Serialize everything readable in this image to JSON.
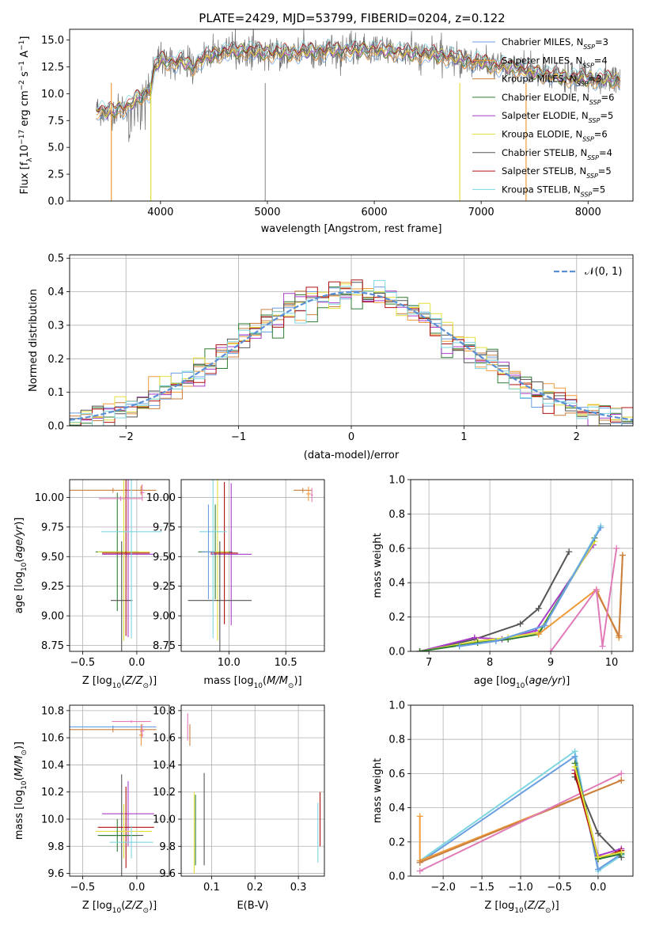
{
  "figure_title": "PLATE=2429, MJD=53799, FIBERID=0204, z=0.122",
  "colors": {
    "Chabrier MILES": "#6a9ee0",
    "Salpeter MILES": "#f09b3a",
    "Kroupa MILES": "#c98040",
    "Chabrier ELODIE": "#2e7d32",
    "Salpeter ELODIE": "#a93cc9",
    "Kroupa ELODIE": "#e3e03a",
    "Chabrier STELIB": "#555555",
    "Salpeter STELIB": "#b01010",
    "Kroupa STELIB": "#7fd6e0",
    "Normal": "#5b8fd6",
    "extra_pink": "#e07bb8"
  },
  "chart_data": [
    {
      "id": "spectrum",
      "type": "line",
      "title": "PLATE=2429, MJD=53799, FIBERID=0204, z=0.122",
      "xlabel": "wavelength [Angstrom, rest frame]",
      "ylabel": "Flux [f_λ10^-17 erg cm^-2 s^-1 A^-1]",
      "xlim": [
        3150,
        8420
      ],
      "ylim": [
        0,
        16
      ],
      "xticks": [
        4000,
        5000,
        6000,
        7000,
        8000
      ],
      "yticks": [
        0.0,
        2.5,
        5.0,
        7.5,
        10.0,
        12.5,
        15.0
      ],
      "grid": false,
      "legend_position": "top-right",
      "series": [
        {
          "name": "Chabrier MILES, N_SSP=3"
        },
        {
          "name": "Salpeter MILES, N_SSP=4"
        },
        {
          "name": "Kroupa MILES, N_SSP=3"
        },
        {
          "name": "Chabrier ELODIE, N_SSP=6"
        },
        {
          "name": "Salpeter ELODIE, N_SSP=5"
        },
        {
          "name": "Kroupa ELODIE, N_SSP=6"
        },
        {
          "name": "Chabrier STELIB, N_SSP=4"
        },
        {
          "name": "Salpeter STELIB, N_SSP=5"
        },
        {
          "name": "Kroupa STELIB, N_SSP=5"
        }
      ],
      "continuum_points": {
        "wavelength": [
          3400,
          3500,
          3600,
          3700,
          3800,
          3900,
          3950,
          4000,
          4100,
          4200,
          4300,
          4400,
          4500,
          4600,
          4800,
          5000,
          5200,
          5400,
          5600,
          5800,
          6000,
          6200,
          6400,
          6600,
          6800,
          7000,
          7200,
          7400,
          7600,
          7800,
          8000,
          8200
        ],
        "flux": [
          8.6,
          8.2,
          8.6,
          8.8,
          9.7,
          10.2,
          12.4,
          13.2,
          12.9,
          13.0,
          12.5,
          13.3,
          13.6,
          13.9,
          14.0,
          13.8,
          13.8,
          13.9,
          14.0,
          14.0,
          14.1,
          13.9,
          13.7,
          13.6,
          13.2,
          12.9,
          12.5,
          12.2,
          11.8,
          11.5,
          11.4,
          11.3
        ]
      }
    },
    {
      "id": "residuals",
      "type": "bar",
      "xlabel": "(data-model)/error",
      "ylabel": "Normed distribution",
      "xlim": [
        -2.5,
        2.5
      ],
      "ylim": [
        0,
        0.51
      ],
      "xticks": [
        -2,
        -1,
        0,
        1,
        2
      ],
      "yticks": [
        0.0,
        0.1,
        0.2,
        0.3,
        0.4,
        0.5
      ],
      "grid": true,
      "legend_position": "top-right",
      "series": [
        {
          "name": "𝒩(0, 1)"
        }
      ],
      "bin_width": 0.1
    },
    {
      "id": "age_vs_Z",
      "type": "scatter",
      "xlabel": "Z [log10(Z/Z⊙)]",
      "ylabel": "age  [log10(age/yr)]",
      "xlim": [
        -0.62,
        0.3
      ],
      "ylim": [
        8.7,
        10.15
      ],
      "xticks": [
        -0.5,
        0.0
      ],
      "yticks": [
        8.75,
        9.0,
        9.25,
        9.5,
        9.75,
        10.0
      ],
      "grid": true,
      "points": [
        {
          "series": "Chabrier MILES",
          "x": 0.04,
          "y": 10.06,
          "xerr": 0.02,
          "yerr": 0.03
        },
        {
          "series": "Salpeter MILES",
          "x": 0.04,
          "y": 10.06,
          "xerr": 0.02,
          "yerr": 0.04
        },
        {
          "series": "Kroupa MILES",
          "x": -0.22,
          "y": 10.06,
          "xerr": 0.4,
          "yerr": 0.02
        },
        {
          "series": "Chabrier ELODIE",
          "x": -0.18,
          "y": 9.54,
          "xerr": 0.2,
          "yerr": 0.5
        },
        {
          "series": "Salpeter ELODIE",
          "x": -0.08,
          "y": 9.52,
          "xerr": 0.24,
          "yerr": 0.7
        },
        {
          "series": "Kroupa ELODIE",
          "x": -0.12,
          "y": 9.54,
          "xerr": 0.24,
          "yerr": 0.75
        },
        {
          "series": "Chabrier STELIB",
          "x": -0.14,
          "y": 9.13,
          "xerr": 0.1,
          "yerr": 0.5
        },
        {
          "series": "Salpeter STELIB",
          "x": -0.1,
          "y": 9.53,
          "xerr": 0.22,
          "yerr": 0.7
        },
        {
          "series": "Kroupa STELIB",
          "x": -0.05,
          "y": 9.71,
          "xerr": 0.28,
          "yerr": 0.9
        },
        {
          "series": "extra_pink",
          "x": -0.15,
          "y": 9.99,
          "xerr": 0.2,
          "yerr": 0.02
        },
        {
          "series": "extra_pink",
          "x": 0.05,
          "y": 10.04,
          "xerr": 0.02,
          "yerr": 0.07
        }
      ]
    },
    {
      "id": "age_vs_mass",
      "type": "scatter",
      "xlabel": "mass [log10(M/M⊙)]",
      "ylabel": "",
      "xlim": [
        9.58,
        10.84
      ],
      "ylim": [
        8.7,
        10.15
      ],
      "xticks": [
        10.0,
        10.5
      ],
      "yticks": [
        8.75,
        9.0,
        9.25,
        9.5,
        9.75,
        10.0
      ],
      "grid": true,
      "points": [
        {
          "series": "Kroupa MILES",
          "x": 10.65,
          "y": 10.06,
          "xerr": 0.08,
          "yerr": 0.02
        },
        {
          "series": "Salpeter MILES",
          "x": 10.7,
          "y": 10.03,
          "xerr": 0.02,
          "yerr": 0.06
        },
        {
          "series": "extra_pink",
          "x": 10.73,
          "y": 10.02,
          "xerr": 0.01,
          "yerr": 0.06
        },
        {
          "series": "Chabrier ELODIE",
          "x": 9.88,
          "y": 9.54,
          "xerr": 0.15,
          "yerr": 0.4
        },
        {
          "series": "Salpeter ELODIE",
          "x": 10.02,
          "y": 9.52,
          "xerr": 0.18,
          "yerr": 0.6
        },
        {
          "series": "Kroupa ELODIE",
          "x": 9.9,
          "y": 9.54,
          "xerr": 0.1,
          "yerr": 0.75
        },
        {
          "series": "Chabrier STELIB",
          "x": 9.92,
          "y": 9.13,
          "xerr": 0.28,
          "yerr": 0.5
        },
        {
          "series": "Salpeter STELIB",
          "x": 9.96,
          "y": 9.53,
          "xerr": 0.12,
          "yerr": 0.6
        },
        {
          "series": "Kroupa STELIB",
          "x": 9.86,
          "y": 9.71,
          "xerr": 0.12,
          "yerr": 0.9
        },
        {
          "series": "Chabrier MILES",
          "x": 9.82,
          "y": 9.54,
          "xerr": 0.06,
          "yerr": 0.4
        }
      ]
    },
    {
      "id": "weight_vs_age",
      "type": "line",
      "xlabel": "age  [log10(age/yr)]",
      "ylabel": "mass weight",
      "xlim": [
        6.7,
        10.35
      ],
      "ylim": [
        0,
        1.0
      ],
      "xticks": [
        7,
        8,
        9,
        10
      ],
      "yticks": [
        0.0,
        0.2,
        0.4,
        0.6,
        0.8,
        1.0
      ],
      "grid": true,
      "series": [
        {
          "color_key": "Chabrier STELIB",
          "x": [
            6.85,
            7.75,
            8.5,
            8.8,
            9.3
          ],
          "y": [
            0.0,
            0.07,
            0.16,
            0.25,
            0.58
          ]
        },
        {
          "color_key": "Salpeter ELODIE",
          "x": [
            6.85,
            7.75,
            8.2,
            8.75,
            9.7
          ],
          "y": [
            0.0,
            0.08,
            0.07,
            0.12,
            0.62
          ]
        },
        {
          "color_key": "Kroupa ELODIE",
          "x": [
            6.85,
            7.8,
            8.3,
            8.8,
            9.72
          ],
          "y": [
            0.0,
            0.06,
            0.08,
            0.11,
            0.64
          ]
        },
        {
          "color_key": "Chabrier ELODIE",
          "x": [
            6.85,
            7.8,
            8.3,
            8.8,
            9.72
          ],
          "y": [
            0.0,
            0.05,
            0.07,
            0.1,
            0.66
          ]
        },
        {
          "color_key": "Kroupa STELIB",
          "x": [
            7.5,
            8.1,
            8.9,
            9.82
          ],
          "y": [
            0.03,
            0.06,
            0.15,
            0.73
          ]
        },
        {
          "color_key": "Chabrier MILES",
          "x": [
            7.5,
            8.1,
            8.9,
            9.82
          ],
          "y": [
            0.03,
            0.06,
            0.15,
            0.72
          ]
        },
        {
          "color_key": "Salpeter MILES",
          "x": [
            8.8,
            9.75,
            10.12,
            10.18
          ],
          "y": [
            0.1,
            0.36,
            0.08,
            0.56
          ]
        },
        {
          "color_key": "Kroupa MILES",
          "x": [
            9.75,
            10.12,
            10.18
          ],
          "y": [
            0.35,
            0.09,
            0.56
          ]
        },
        {
          "color_key": "extra_pink",
          "x": [
            9.0,
            9.75,
            9.85,
            10.08
          ],
          "y": [
            0.0,
            0.36,
            0.03,
            0.6
          ]
        }
      ]
    },
    {
      "id": "mass_vs_Z",
      "type": "scatter",
      "xlabel": "Z [log10(Z/Z⊙)]",
      "ylabel": "mass [log10(M/M⊙)]",
      "xlim": [
        -0.62,
        0.3
      ],
      "ylim": [
        9.58,
        10.84
      ],
      "xticks": [
        -0.5,
        0.0
      ],
      "yticks": [
        9.6,
        9.8,
        10.0,
        10.2,
        10.4,
        10.6,
        10.8
      ],
      "grid": true,
      "points": [
        {
          "series": "Kroupa MILES",
          "x": -0.22,
          "y": 10.66,
          "xerr": 0.4,
          "yerr": 0.02
        },
        {
          "series": "Salpeter MILES",
          "x": 0.04,
          "y": 10.62,
          "xerr": 0.02,
          "yerr": 0.08
        },
        {
          "series": "Chabrier MILES",
          "x": -0.22,
          "y": 10.68,
          "xerr": 0.4,
          "yerr": 0.01
        },
        {
          "series": "extra_pink",
          "x": -0.05,
          "y": 10.72,
          "xerr": 0.18,
          "yerr": 0.01
        },
        {
          "series": "extra_pink",
          "x": 0.05,
          "y": 10.65,
          "xerr": 0.02,
          "yerr": 0.05
        },
        {
          "series": "Salpeter ELODIE",
          "x": -0.08,
          "y": 10.04,
          "xerr": 0.24,
          "yerr": 0.24
        },
        {
          "series": "Chabrier STELIB",
          "x": -0.14,
          "y": 9.88,
          "xerr": 0.2,
          "yerr": 0.45
        },
        {
          "series": "Salpeter STELIB",
          "x": -0.1,
          "y": 9.94,
          "xerr": 0.26,
          "yerr": 0.3
        },
        {
          "series": "Kroupa ELODIE",
          "x": -0.12,
          "y": 9.91,
          "xerr": 0.26,
          "yerr": 0.2
        },
        {
          "series": "Chabrier ELODIE",
          "x": -0.18,
          "y": 9.88,
          "xerr": 0.18,
          "yerr": 0.12
        },
        {
          "series": "Kroupa STELIB",
          "x": -0.05,
          "y": 9.83,
          "xerr": 0.2,
          "yerr": 0.12
        }
      ]
    },
    {
      "id": "mass_vs_EBV",
      "type": "scatter",
      "xlabel": "E(B-V)",
      "ylabel": "",
      "xlim": [
        0.03,
        0.36
      ],
      "ylim": [
        9.58,
        10.84
      ],
      "xticks": [
        0.1,
        0.2,
        0.3
      ],
      "yticks": [
        9.6,
        9.8,
        10.0,
        10.2,
        10.4,
        10.6,
        10.8
      ],
      "grid": true,
      "points": [
        {
          "series": "extra_pink",
          "x": 0.045,
          "y": 10.68,
          "xerr": 0.002,
          "yerr": 0.1
        },
        {
          "series": "Kroupa MILES",
          "x": 0.05,
          "y": 10.62,
          "xerr": 0.002,
          "yerr": 0.08
        },
        {
          "series": "Kroupa ELODIE",
          "x": 0.06,
          "y": 9.9,
          "xerr": 0.002,
          "yerr": 0.3
        },
        {
          "series": "Chabrier ELODIE",
          "x": 0.063,
          "y": 9.92,
          "xerr": 0.002,
          "yerr": 0.26
        },
        {
          "series": "Chabrier STELIB",
          "x": 0.083,
          "y": 10.0,
          "xerr": 0.002,
          "yerr": 0.34
        },
        {
          "series": "Kroupa STELIB",
          "x": 0.345,
          "y": 9.9,
          "xerr": 0.002,
          "yerr": 0.22
        },
        {
          "series": "Salpeter STELIB",
          "x": 0.35,
          "y": 10.0,
          "xerr": 0.002,
          "yerr": 0.2
        }
      ]
    },
    {
      "id": "weight_vs_Z",
      "type": "line",
      "xlabel": "Z [log10(Z/Z⊙)]",
      "ylabel": "mass weight",
      "xlim": [
        -2.42,
        0.45
      ],
      "ylim": [
        0,
        1.0
      ],
      "xticks": [
        -2.0,
        -1.5,
        -1.0,
        -0.5,
        0.0
      ],
      "yticks": [
        0.0,
        0.2,
        0.4,
        0.6,
        0.8,
        1.0
      ],
      "grid": true,
      "series": [
        {
          "color_key": "Kroupa STELIB",
          "x": [
            -2.3,
            -0.3,
            0.0,
            0.3
          ],
          "y": [
            0.09,
            0.73,
            0.03,
            0.12
          ]
        },
        {
          "color_key": "Chabrier MILES",
          "x": [
            -2.3,
            -0.3,
            0.0,
            0.3
          ],
          "y": [
            0.08,
            0.7,
            0.04,
            0.13
          ]
        },
        {
          "color_key": "Salpeter MILES",
          "x": [
            -2.3,
            -2.3,
            0.3
          ],
          "y": [
            0.35,
            0.09,
            0.56
          ]
        },
        {
          "color_key": "Kroupa MILES",
          "x": [
            -2.3,
            0.3
          ],
          "y": [
            0.08,
            0.56
          ]
        },
        {
          "color_key": "extra_pink",
          "x": [
            -2.3,
            0.3
          ],
          "y": [
            0.03,
            0.6
          ]
        },
        {
          "color_key": "Chabrier STELIB",
          "x": [
            -0.3,
            0.0,
            0.3
          ],
          "y": [
            0.58,
            0.25,
            0.11
          ]
        },
        {
          "color_key": "Salpeter ELODIE",
          "x": [
            -0.3,
            0.0,
            0.3
          ],
          "y": [
            0.62,
            0.12,
            0.16
          ]
        },
        {
          "color_key": "Salpeter STELIB",
          "x": [
            -0.3,
            0.0,
            0.3
          ],
          "y": [
            0.6,
            0.1,
            0.15
          ]
        },
        {
          "color_key": "Chabrier ELODIE",
          "x": [
            -0.3,
            0.0,
            0.3
          ],
          "y": [
            0.66,
            0.1,
            0.13
          ]
        },
        {
          "color_key": "Kroupa ELODIE",
          "x": [
            -0.3,
            0.0,
            0.3
          ],
          "y": [
            0.64,
            0.11,
            0.14
          ]
        }
      ]
    }
  ]
}
